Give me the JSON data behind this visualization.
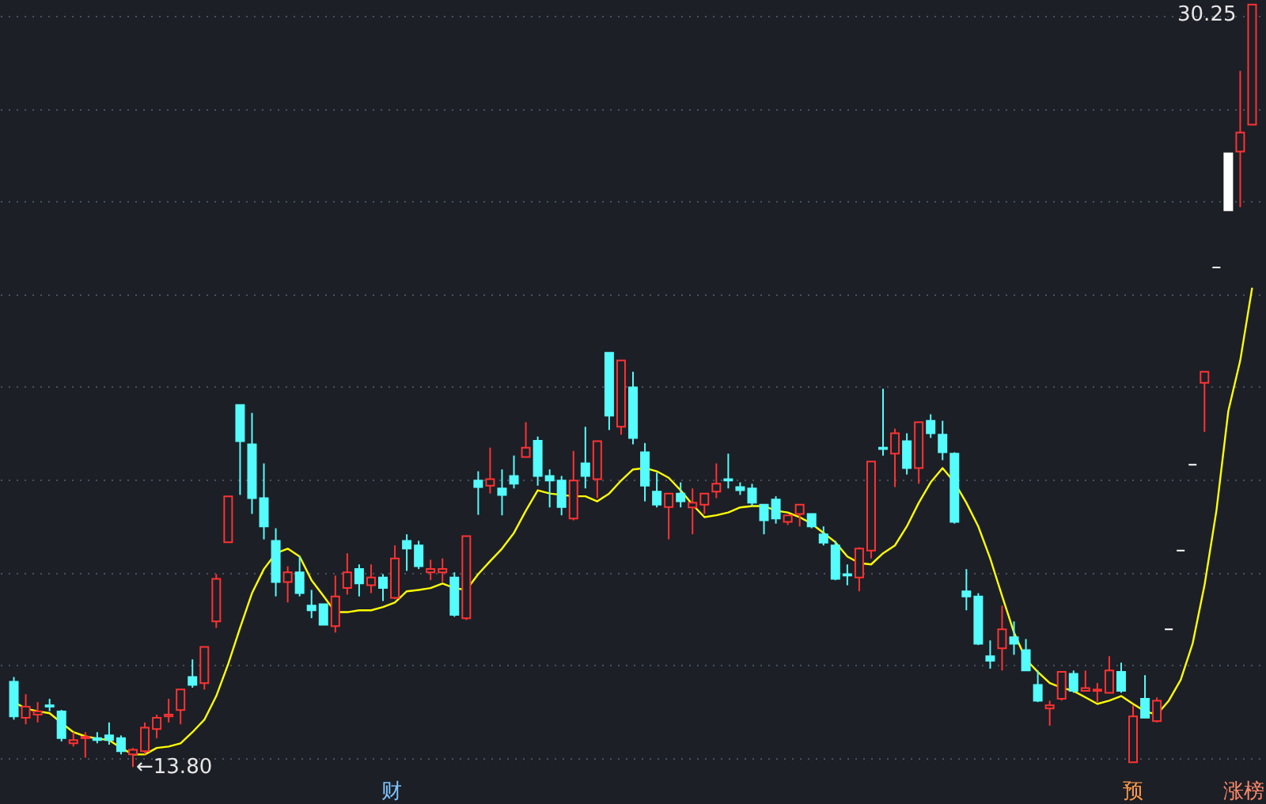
{
  "chart_data": {
    "type": "candlestick",
    "categories": [
      null,
      null,
      null,
      null,
      null,
      null,
      null,
      null,
      null,
      null,
      null,
      null,
      null,
      null,
      null,
      null,
      null,
      null,
      null,
      null,
      null,
      null,
      null,
      null,
      null,
      null,
      null,
      null,
      null,
      null,
      null,
      null,
      null,
      null,
      null,
      null,
      null,
      null,
      null,
      null,
      null,
      null,
      null,
      null,
      null,
      null,
      null,
      null,
      null,
      null,
      null,
      null,
      null,
      null,
      null,
      null,
      null,
      null,
      null,
      null,
      null,
      null,
      null,
      null,
      null,
      null,
      null,
      null,
      null,
      null,
      null,
      null,
      null,
      null,
      null,
      null,
      null,
      null,
      null,
      null,
      null,
      null,
      null,
      null,
      null,
      null,
      null,
      null,
      null,
      null,
      null,
      null,
      null,
      null,
      null,
      null,
      null,
      null,
      null,
      null,
      null,
      null,
      null,
      null,
      null
    ],
    "ohlc": [
      [
        15.64,
        15.74,
        14.82,
        14.89
      ],
      [
        14.86,
        15.37,
        14.72,
        15.1
      ],
      [
        14.93,
        15.2,
        14.76,
        15.0
      ],
      [
        15.13,
        15.27,
        15.0,
        15.1
      ],
      [
        15.0,
        15.03,
        14.35,
        14.42
      ],
      [
        14.31,
        14.55,
        14.24,
        14.38
      ],
      [
        14.42,
        14.55,
        14.0,
        14.45
      ],
      [
        14.42,
        14.55,
        14.31,
        14.38
      ],
      [
        14.48,
        14.76,
        14.28,
        14.38
      ],
      [
        14.42,
        14.48,
        14.07,
        14.14
      ],
      [
        14.07,
        14.21,
        13.8,
        14.17
      ],
      [
        14.14,
        14.76,
        14.07,
        14.65
      ],
      [
        14.62,
        14.93,
        14.42,
        14.86
      ],
      [
        14.89,
        15.27,
        14.76,
        14.93
      ],
      [
        15.03,
        15.47,
        14.72,
        15.47
      ],
      [
        15.74,
        16.12,
        15.51,
        15.57
      ],
      [
        15.61,
        16.39,
        15.47,
        16.39
      ],
      [
        16.94,
        17.96,
        16.8,
        17.86
      ],
      [
        18.65,
        19.64,
        18.65,
        19.64
      ],
      [
        21.61,
        21.61,
        19.67,
        20.83
      ],
      [
        20.76,
        21.44,
        19.26,
        19.6
      ],
      [
        19.6,
        20.35,
        18.71,
        18.99
      ],
      [
        18.68,
        18.95,
        17.48,
        17.79
      ],
      [
        17.79,
        18.13,
        17.35,
        18.0
      ],
      [
        18.0,
        18.34,
        17.48,
        17.55
      ],
      [
        17.28,
        17.62,
        17.01,
        17.18
      ],
      [
        17.31,
        17.31,
        16.87,
        16.87
      ],
      [
        16.84,
        17.93,
        16.7,
        17.48
      ],
      [
        17.66,
        18.41,
        17.52,
        18.0
      ],
      [
        18.07,
        18.17,
        17.48,
        17.76
      ],
      [
        17.72,
        18.17,
        17.55,
        17.89
      ],
      [
        17.89,
        17.96,
        17.38,
        17.66
      ],
      [
        17.45,
        18.58,
        17.42,
        18.3
      ],
      [
        18.68,
        18.82,
        18.03,
        18.51
      ],
      [
        18.58,
        18.68,
        18.07,
        18.13
      ],
      [
        18.0,
        18.27,
        17.83,
        18.07
      ],
      [
        18.0,
        18.3,
        17.79,
        18.07
      ],
      [
        17.89,
        18.0,
        17.04,
        17.08
      ],
      [
        17.01,
        18.78,
        16.97,
        18.78
      ],
      [
        19.98,
        20.18,
        19.24,
        19.84
      ],
      [
        19.87,
        20.69,
        19.7,
        20.01
      ],
      [
        19.81,
        20.22,
        19.23,
        19.67
      ],
      [
        20.08,
        20.52,
        19.81,
        19.91
      ],
      [
        20.49,
        21.24,
        20.49,
        20.69
      ],
      [
        20.84,
        20.93,
        19.87,
        20.08
      ],
      [
        20.08,
        20.22,
        19.4,
        19.98
      ],
      [
        19.98,
        20.08,
        19.23,
        19.41
      ],
      [
        19.16,
        20.62,
        19.12,
        19.98
      ],
      [
        20.35,
        21.14,
        19.81,
        20.08
      ],
      [
        20.01,
        20.83,
        19.6,
        20.83
      ],
      [
        22.74,
        22.74,
        21.07,
        21.38
      ],
      [
        21.14,
        22.57,
        20.97,
        22.57
      ],
      [
        21.99,
        22.33,
        20.76,
        20.9
      ],
      [
        20.59,
        20.79,
        19.53,
        19.87
      ],
      [
        19.74,
        20.15,
        19.4,
        19.46
      ],
      [
        19.41,
        19.7,
        18.71,
        19.7
      ],
      [
        19.7,
        19.94,
        19.4,
        19.53
      ],
      [
        19.4,
        19.81,
        18.82,
        19.5
      ],
      [
        19.46,
        19.7,
        19.26,
        19.7
      ],
      [
        19.74,
        20.35,
        19.6,
        19.91
      ],
      [
        20.01,
        20.56,
        19.81,
        19.98
      ],
      [
        19.84,
        19.94,
        19.67,
        19.77
      ],
      [
        19.81,
        19.91,
        19.43,
        19.5
      ],
      [
        19.46,
        19.46,
        18.82,
        19.12
      ],
      [
        19.57,
        19.64,
        19.05,
        19.16
      ],
      [
        19.09,
        19.23,
        19.02,
        19.23
      ],
      [
        19.26,
        19.46,
        18.99,
        19.46
      ],
      [
        19.26,
        19.26,
        18.95,
        18.99
      ],
      [
        18.82,
        18.99,
        18.58,
        18.64
      ],
      [
        18.58,
        18.68,
        17.83,
        17.86
      ],
      [
        17.96,
        18.17,
        17.72,
        17.93
      ],
      [
        17.89,
        18.54,
        17.59,
        18.51
      ],
      [
        18.47,
        20.39,
        18.3,
        20.39
      ],
      [
        20.69,
        21.96,
        20.52,
        20.66
      ],
      [
        20.56,
        21.1,
        19.84,
        21.0
      ],
      [
        20.83,
        21.0,
        20.11,
        20.25
      ],
      [
        20.25,
        21.24,
        19.91,
        21.24
      ],
      [
        21.27,
        21.41,
        20.9,
        21.0
      ],
      [
        20.97,
        21.27,
        20.42,
        20.59
      ],
      [
        20.56,
        20.59,
        19.05,
        19.09
      ],
      [
        17.59,
        18.07,
        17.18,
        17.48
      ],
      [
        17.48,
        17.55,
        16.43,
        16.46
      ],
      [
        16.19,
        16.53,
        15.92,
        16.09
      ],
      [
        16.36,
        17.28,
        15.88,
        16.77
      ],
      [
        16.6,
        16.94,
        16.22,
        16.46
      ],
      [
        16.32,
        16.56,
        15.88,
        15.88
      ],
      [
        15.57,
        15.88,
        15.2,
        15.23
      ],
      [
        15.06,
        15.23,
        14.69,
        15.13
      ],
      [
        15.27,
        15.85,
        15.23,
        15.85
      ],
      [
        15.81,
        15.88,
        15.4,
        15.44
      ],
      [
        15.44,
        15.88,
        15.44,
        15.5
      ],
      [
        15.44,
        15.61,
        15.2,
        15.47
      ],
      [
        15.4,
        16.19,
        15.4,
        15.88
      ],
      [
        15.85,
        16.05,
        15.4,
        15.44
      ],
      [
        13.9,
        15.13,
        13.9,
        14.89
      ],
      [
        15.27,
        15.78,
        14.86,
        14.86
      ],
      [
        14.79,
        15.3,
        14.76,
        15.23
      ],
      [
        16.77,
        16.77,
        16.77,
        16.77
      ],
      [
        18.47,
        18.47,
        18.47,
        18.47
      ],
      [
        20.32,
        20.32,
        20.32,
        20.32
      ],
      [
        22.09,
        22.33,
        21.03,
        22.33
      ],
      [
        24.58,
        24.58,
        24.58,
        24.58
      ],
      [
        27.04,
        27.04,
        25.81,
        25.81
      ],
      [
        27.08,
        28.82,
        25.88,
        27.49
      ],
      [
        27.66,
        30.25,
        27.66,
        30.25
      ]
    ],
    "colors": [
      "#54fcfc",
      "#ff3232",
      "#ff3232",
      "#54fcfc",
      "#54fcfc",
      "#ff3232",
      "#ff3232",
      "#54fcfc",
      "#54fcfc",
      "#54fcfc",
      "#ff3232",
      "#ff3232",
      "#ff3232",
      "#ff3232",
      "#ff3232",
      "#54fcfc",
      "#ff3232",
      "#ff3232",
      "#ff3232",
      "#54fcfc",
      "#54fcfc",
      "#54fcfc",
      "#54fcfc",
      "#ff3232",
      "#54fcfc",
      "#54fcfc",
      "#54fcfc",
      "#ff3232",
      "#ff3232",
      "#54fcfc",
      "#ff3232",
      "#54fcfc",
      "#ff3232",
      "#54fcfc",
      "#54fcfc",
      "#ff3232",
      "#ff3232",
      "#54fcfc",
      "#ff3232",
      "#54fcfc",
      "#ff3232",
      "#54fcfc",
      "#54fcfc",
      "#ff3232",
      "#54fcfc",
      "#54fcfc",
      "#54fcfc",
      "#ff3232",
      "#54fcfc",
      "#ff3232",
      "#54fcfc",
      "#ff3232",
      "#54fcfc",
      "#54fcfc",
      "#54fcfc",
      "#ff3232",
      "#54fcfc",
      "#ff3232",
      "#ff3232",
      "#ff3232",
      "#54fcfc",
      "#54fcfc",
      "#54fcfc",
      "#54fcfc",
      "#54fcfc",
      "#ff3232",
      "#ff3232",
      "#54fcfc",
      "#54fcfc",
      "#54fcfc",
      "#54fcfc",
      "#ff3232",
      "#ff3232",
      "#54fcfc",
      "#ff3232",
      "#54fcfc",
      "#ff3232",
      "#54fcfc",
      "#54fcfc",
      "#54fcfc",
      "#54fcfc",
      "#54fcfc",
      "#54fcfc",
      "#ff3232",
      "#54fcfc",
      "#54fcfc",
      "#54fcfc",
      "#ff3232",
      "#ff3232",
      "#54fcfc",
      "#ff3232",
      "#ff3232",
      "#ff3232",
      "#54fcfc",
      "#ff3232",
      "#54fcfc",
      "#ff3232",
      "#ffffff",
      "#ffffff",
      "#ffffff",
      "#ff3232",
      "#ffffff",
      "#ffffff",
      "#ff3232",
      "#ff3232"
    ],
    "series": [
      {
        "type": "line",
        "color": "#ffff00",
        "values": [
          15.2,
          15.06,
          15.0,
          14.96,
          14.75,
          14.55,
          14.46,
          14.41,
          14.38,
          14.21,
          14.07,
          14.07,
          14.21,
          14.24,
          14.31,
          14.55,
          14.82,
          15.33,
          16.02,
          16.8,
          17.55,
          18.07,
          18.41,
          18.51,
          18.34,
          17.83,
          17.49,
          17.14,
          17.14,
          17.18,
          17.18,
          17.25,
          17.35,
          17.59,
          17.62,
          17.66,
          17.76,
          17.66,
          17.62,
          17.96,
          18.24,
          18.51,
          18.85,
          19.33,
          19.77,
          19.7,
          19.67,
          19.64,
          19.64,
          19.53,
          19.7,
          19.98,
          20.22,
          20.25,
          20.18,
          20.04,
          19.77,
          19.46,
          19.19,
          19.23,
          19.29,
          19.4,
          19.43,
          19.43,
          19.33,
          19.29,
          19.19,
          19.05,
          18.85,
          18.65,
          18.34,
          18.2,
          18.17,
          18.41,
          18.58,
          18.99,
          19.5,
          19.94,
          20.25,
          19.94,
          19.5,
          18.99,
          18.3,
          17.49,
          16.7,
          16.12,
          15.85,
          15.61,
          15.51,
          15.44,
          15.3,
          15.16,
          15.23,
          15.33,
          15.16,
          15.0,
          14.93,
          15.23,
          15.68,
          16.46,
          17.72,
          19.33,
          21.48,
          22.57,
          24.14
        ]
      }
    ],
    "ylim": [
      13.0,
      30.35
    ],
    "yticks": [
      {
        "value": 14,
        "label": null
      },
      {
        "value": 16,
        "label": null
      },
      {
        "value": 18,
        "label": null
      },
      {
        "value": 20,
        "label": null
      },
      {
        "value": 22,
        "label": null
      },
      {
        "value": 24,
        "label": null
      },
      {
        "value": 26,
        "label": null
      },
      {
        "value": 28,
        "label": null
      },
      {
        "value": 30,
        "label": null
      }
    ],
    "grid": "y",
    "annotations": [
      "←13.80",
      "30.25",
      "财",
      "预",
      "涨榜"
    ]
  }
}
